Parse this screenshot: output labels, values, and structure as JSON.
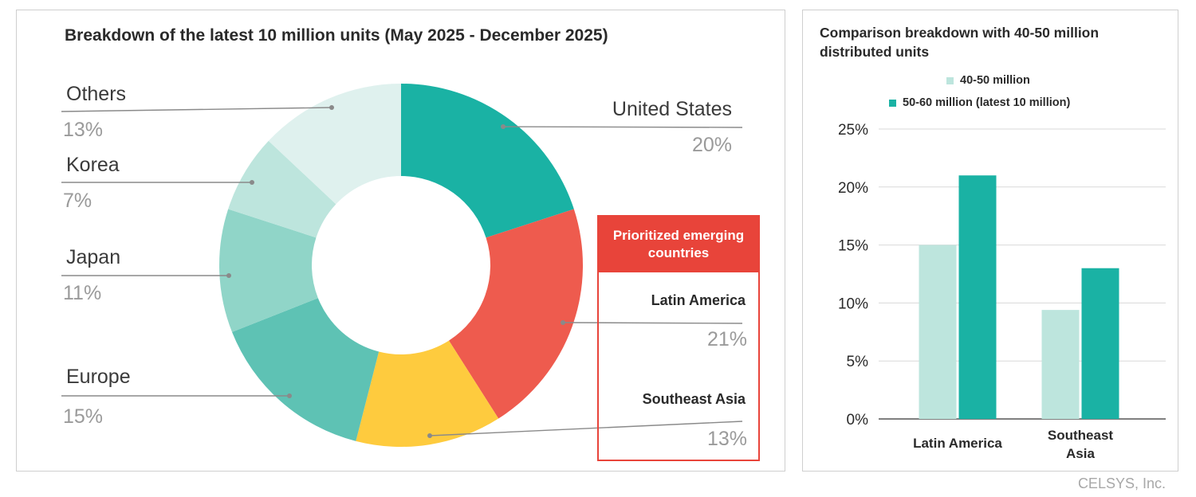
{
  "left_chart": {
    "title": "Breakdown of the latest 10 million units (May 2025 - December 2025)"
  },
  "right_chart": {
    "title": "Comparison breakdown with 40-50 million distributed units"
  },
  "priority_box": {
    "heading": "Prioritized emerging countries"
  },
  "credit": "CELSYS, Inc.",
  "chart_data": [
    {
      "type": "pie",
      "donut": true,
      "title": "Breakdown of the latest 10 million units (May 2025 - December 2025)",
      "slices": [
        {
          "label": "United States",
          "value": 20,
          "value_label": "20%",
          "color": "#1ab2a4"
        },
        {
          "label": "Latin America",
          "value": 21,
          "value_label": "21%",
          "color": "#ee5b4e"
        },
        {
          "label": "Southeast Asia",
          "value": 13,
          "value_label": "13%",
          "color": "#fecb3e"
        },
        {
          "label": "Europe",
          "value": 15,
          "value_label": "15%",
          "color": "#5ec2b4"
        },
        {
          "label": "Japan",
          "value": 11,
          "value_label": "11%",
          "color": "#90d5c8"
        },
        {
          "label": "Korea",
          "value": 7,
          "value_label": "7%",
          "color": "#bde5dd"
        },
        {
          "label": "Others",
          "value": 13,
          "value_label": "13%",
          "color": "#dff1ee"
        }
      ]
    },
    {
      "type": "bar",
      "title": "Comparison breakdown with 40-50 million distributed units",
      "categories": [
        "Latin America",
        "Southeast Asia"
      ],
      "series": [
        {
          "name": "40-50 million",
          "values": [
            15,
            9.4
          ],
          "color": "#bde5dd"
        },
        {
          "name": "50-60 million (latest 10 million)",
          "values": [
            21,
            13
          ],
          "color": "#1ab2a4"
        }
      ],
      "ylim": [
        0,
        25
      ],
      "yticks": [
        0,
        5,
        10,
        15,
        20,
        25
      ],
      "ytick_labels": [
        "0%",
        "5%",
        "10%",
        "15%",
        "20%",
        "25%"
      ],
      "grid": true,
      "legend": "top"
    }
  ]
}
